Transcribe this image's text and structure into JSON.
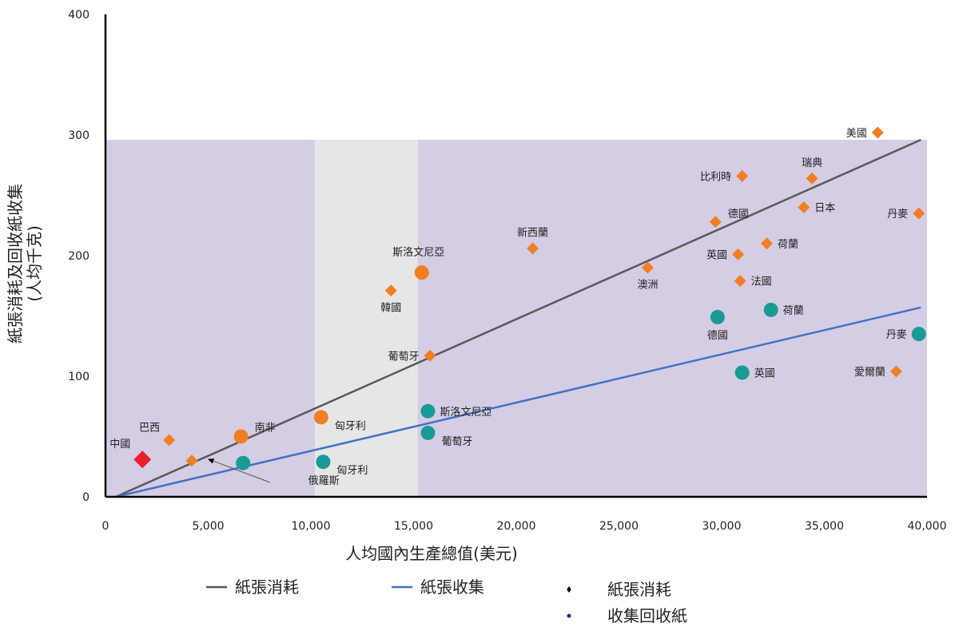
{
  "chart_data": {
    "type": "scatter",
    "xlabel": "人均國內生產總值(美元)",
    "ylabel_lines": [
      "紙張消耗及回收紙收集",
      "(人均千克)"
    ],
    "xlim": [
      0,
      40000
    ],
    "ylim": [
      0,
      400
    ],
    "x_ticks": [
      {
        "value": 0,
        "label": "0"
      },
      {
        "value": 5000,
        "label": "5,000"
      },
      {
        "value": 10000,
        "label": "10,000"
      },
      {
        "value": 15000,
        "label": "15,000"
      },
      {
        "value": 20000,
        "label": "20,000"
      },
      {
        "value": 25000,
        "label": "25,000"
      },
      {
        "value": 30000,
        "label": "30,000"
      },
      {
        "value": 35000,
        "label": "35,000"
      },
      {
        "value": 40000,
        "label": "40,000"
      }
    ],
    "y_ticks": [
      {
        "value": 0,
        "label": "0"
      },
      {
        "value": 100,
        "label": "100"
      },
      {
        "value": 200,
        "label": "200"
      },
      {
        "value": 300,
        "label": "300"
      },
      {
        "value": 400,
        "label": "400"
      }
    ],
    "colors": {
      "band_purple": "#d5cde4",
      "band_gray": "#e6e6e6",
      "consumption_marker": "#f07f24",
      "china_marker": "#e8202a",
      "collection_teal": "#1a9a95",
      "collection_orange": "#f07f24",
      "consumption_line": "#595959",
      "collection_line": "#4472c4",
      "axis": "#000000",
      "legend_diamond": "#000000",
      "legend_dot": "#2b2a7a"
    },
    "background_bands": [
      {
        "x_from": 0,
        "x_to": 10200,
        "y_top": 296,
        "fill": "purple"
      },
      {
        "x_from": 10200,
        "x_to": 15200,
        "y_top": 296,
        "fill": "gray"
      },
      {
        "x_from": 15200,
        "x_to": 40000,
        "y_top": 296,
        "fill": "purple"
      }
    ],
    "trend_lines": [
      {
        "name": "紙張消耗",
        "x": [
          500,
          39700
        ],
        "y": [
          0,
          296
        ],
        "color": "consumption_line"
      },
      {
        "name": "紙張收集",
        "x": [
          500,
          39700
        ],
        "y": [
          0,
          157
        ],
        "color": "collection_line"
      }
    ],
    "series": [
      {
        "name": "紙張消耗",
        "marker": "diamond",
        "points": [
          {
            "label": "美國",
            "x": 37600,
            "y": 302,
            "label_pos": "left"
          },
          {
            "label": "瑞典",
            "x": 34400,
            "y": 264,
            "label_pos": "above"
          },
          {
            "label": "比利時",
            "x": 31000,
            "y": 266,
            "label_pos": "left"
          },
          {
            "label": "日本",
            "x": 34000,
            "y": 240,
            "label_pos": "right"
          },
          {
            "label": "丹麥",
            "x": 39600,
            "y": 235,
            "label_pos": "left"
          },
          {
            "label": "德國",
            "x": 29700,
            "y": 228,
            "label_pos": "right-above"
          },
          {
            "label": "荷蘭",
            "x": 32200,
            "y": 210,
            "label_pos": "right"
          },
          {
            "label": "英國",
            "x": 30800,
            "y": 201,
            "label_pos": "left"
          },
          {
            "label": "法國",
            "x": 30900,
            "y": 179,
            "label_pos": "right"
          },
          {
            "label": "新西蘭",
            "x": 20800,
            "y": 206,
            "label_pos": "above"
          },
          {
            "label": "澳洲",
            "x": 26400,
            "y": 190,
            "label_pos": "below"
          },
          {
            "label": "韓國",
            "x": 13900,
            "y": 171,
            "label_pos": "below"
          },
          {
            "label": "葡萄牙",
            "x": 15800,
            "y": 117,
            "label_pos": "left"
          },
          {
            "label": "愛爾蘭",
            "x": 38500,
            "y": 104,
            "label_pos": "left"
          },
          {
            "label": "巴西",
            "x": 3100,
            "y": 47,
            "label_pos": "left-above"
          },
          {
            "label": "",
            "x": 4200,
            "y": 30,
            "label_pos": "none"
          },
          {
            "label": "中國",
            "x": 1800,
            "y": 31,
            "label_pos": "left-above",
            "special": "china"
          }
        ]
      },
      {
        "name": "收集回收紙",
        "marker": "circle",
        "points": [
          {
            "label": "斯洛文尼亞",
            "x": 15400,
            "y": 186,
            "label_pos": "above-left",
            "color": "collection_orange"
          },
          {
            "label": "匈牙利",
            "x": 10500,
            "y": 66,
            "label_pos": "right-below",
            "color": "collection_orange"
          },
          {
            "label": "南非",
            "x": 6600,
            "y": 50,
            "label_pos": "right-above",
            "color": "collection_orange"
          },
          {
            "label": "荷蘭",
            "x": 32400,
            "y": 155,
            "label_pos": "right",
            "color": "collection_teal"
          },
          {
            "label": "德國",
            "x": 29800,
            "y": 149,
            "label_pos": "below",
            "color": "collection_teal"
          },
          {
            "label": "丹麥",
            "x": 39600,
            "y": 135,
            "label_pos": "left",
            "color": "collection_teal"
          },
          {
            "label": "英國",
            "x": 31000,
            "y": 103,
            "label_pos": "right",
            "color": "collection_teal"
          },
          {
            "label": "斯洛文尼亞",
            "x": 15700,
            "y": 71,
            "label_pos": "right",
            "color": "collection_teal"
          },
          {
            "label": "葡萄牙",
            "x": 15700,
            "y": 53,
            "label_pos": "right-below",
            "color": "collection_teal"
          },
          {
            "label": "匈牙利",
            "x": 10600,
            "y": 29,
            "label_pos": "right-below",
            "color": "collection_teal"
          },
          {
            "label": "",
            "x": 6700,
            "y": 28,
            "label_pos": "none",
            "color": "collection_teal"
          }
        ]
      }
    ],
    "annotations": [
      {
        "text": "俄羅斯",
        "arrow_from": [
          8000,
          12
        ],
        "arrow_to": [
          4600,
          30
        ]
      }
    ],
    "legend": {
      "placement": "bottom",
      "items": [
        {
          "label": "紙張消耗",
          "symbol": "line",
          "color": "consumption_line"
        },
        {
          "label": "紙張收集",
          "symbol": "line",
          "color": "collection_line"
        },
        {
          "label": "紙張消耗",
          "symbol": "diamond",
          "color": "legend_diamond"
        },
        {
          "label": "收集回收紙",
          "symbol": "dot",
          "color": "legend_dot"
        }
      ]
    }
  }
}
